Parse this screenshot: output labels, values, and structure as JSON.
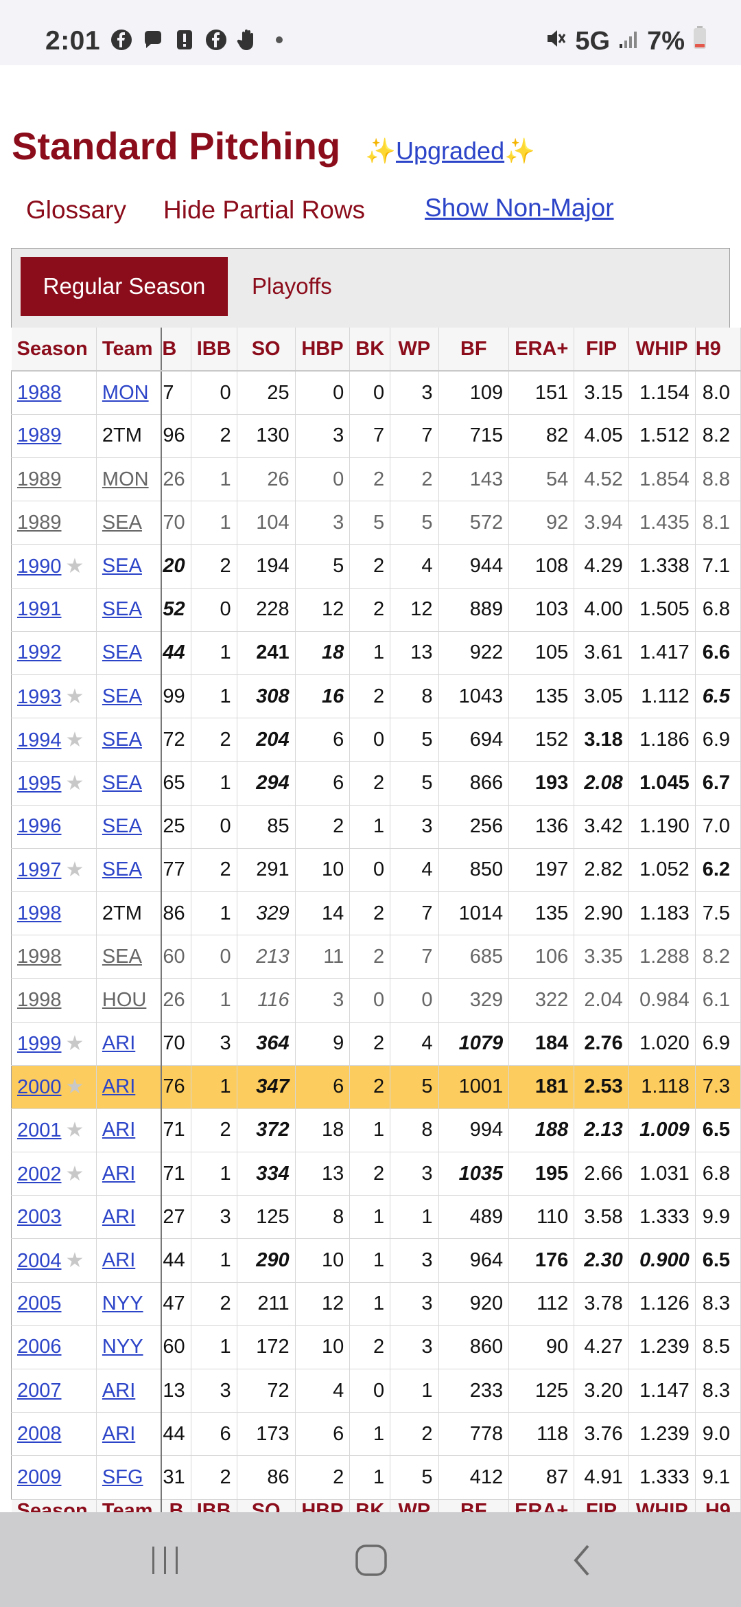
{
  "status": {
    "time": "2:01",
    "network": "5G",
    "battery": "7%"
  },
  "page": {
    "title": "Standard Pitching",
    "upgraded_label": "Upgraded",
    "sparkle": "✨"
  },
  "links": {
    "glossary": "Glossary",
    "hide_partial": "Hide Partial Rows",
    "show_non_major": "Show Non-Major"
  },
  "tabs": {
    "regular": "Regular Season",
    "playoffs": "Playoffs"
  },
  "table": {
    "headers": [
      "Season",
      "Team",
      "B",
      "IBB",
      "SO",
      "HBP",
      "BK",
      "WP",
      "BF",
      "ERA+",
      "FIP",
      "WHIP",
      "H9"
    ],
    "rows": [
      {
        "season": "1988",
        "star": false,
        "team": "MON",
        "team_link": true,
        "partial": false,
        "hl": false,
        "c": [
          "7",
          "0",
          "25",
          "0",
          "0",
          "3",
          "109",
          "151",
          "3.15",
          "1.154",
          "8.0"
        ],
        "f": [
          "",
          "",
          "",
          "",
          "",
          "",
          "",
          "",
          "",
          "",
          ""
        ]
      },
      {
        "season": "1989",
        "star": false,
        "team": "2TM",
        "team_link": false,
        "partial": false,
        "hl": false,
        "c": [
          "96",
          "2",
          "130",
          "3",
          "7",
          "7",
          "715",
          "82",
          "4.05",
          "1.512",
          "8.2"
        ],
        "f": [
          "",
          "",
          "",
          "",
          "",
          "",
          "",
          "",
          "",
          "",
          ""
        ]
      },
      {
        "season": "1989",
        "star": false,
        "team": "MON",
        "team_link": true,
        "partial": true,
        "hl": false,
        "c": [
          "26",
          "1",
          "26",
          "0",
          "2",
          "2",
          "143",
          "54",
          "4.52",
          "1.854",
          "8.8"
        ],
        "f": [
          "",
          "",
          "",
          "",
          "",
          "",
          "",
          "",
          "",
          "",
          ""
        ]
      },
      {
        "season": "1989",
        "star": false,
        "team": "SEA",
        "team_link": true,
        "partial": true,
        "hl": false,
        "c": [
          "70",
          "1",
          "104",
          "3",
          "5",
          "5",
          "572",
          "92",
          "3.94",
          "1.435",
          "8.1"
        ],
        "f": [
          "",
          "",
          "",
          "",
          "",
          "",
          "",
          "",
          "",
          "",
          ""
        ]
      },
      {
        "season": "1990",
        "star": true,
        "team": "SEA",
        "team_link": true,
        "partial": false,
        "hl": false,
        "c": [
          "20",
          "2",
          "194",
          "5",
          "2",
          "4",
          "944",
          "108",
          "4.29",
          "1.338",
          "7.1"
        ],
        "f": [
          "bi",
          "",
          "",
          "",
          "",
          "",
          "",
          "",
          "",
          "",
          ""
        ]
      },
      {
        "season": "1991",
        "star": false,
        "team": "SEA",
        "team_link": true,
        "partial": false,
        "hl": false,
        "c": [
          "52",
          "0",
          "228",
          "12",
          "2",
          "12",
          "889",
          "103",
          "4.00",
          "1.505",
          "6.8"
        ],
        "f": [
          "bi",
          "",
          "",
          "",
          "",
          "",
          "",
          "",
          "",
          "",
          ""
        ]
      },
      {
        "season": "1992",
        "star": false,
        "team": "SEA",
        "team_link": true,
        "partial": false,
        "hl": false,
        "c": [
          "44",
          "1",
          "241",
          "18",
          "1",
          "13",
          "922",
          "105",
          "3.61",
          "1.417",
          "6.6"
        ],
        "f": [
          "bi",
          "",
          "b",
          "bi",
          "",
          "",
          "",
          "",
          "",
          "",
          "b"
        ]
      },
      {
        "season": "1993",
        "star": true,
        "team": "SEA",
        "team_link": true,
        "partial": false,
        "hl": false,
        "c": [
          "99",
          "1",
          "308",
          "16",
          "2",
          "8",
          "1043",
          "135",
          "3.05",
          "1.112",
          "6.5"
        ],
        "f": [
          "",
          "",
          "bi",
          "bi",
          "",
          "",
          "",
          "",
          "",
          "",
          "bi"
        ]
      },
      {
        "season": "1994",
        "star": true,
        "team": "SEA",
        "team_link": true,
        "partial": false,
        "hl": false,
        "c": [
          "72",
          "2",
          "204",
          "6",
          "0",
          "5",
          "694",
          "152",
          "3.18",
          "1.186",
          "6.9"
        ],
        "f": [
          "",
          "",
          "bi",
          "",
          "",
          "",
          "",
          "",
          "b",
          "",
          ""
        ]
      },
      {
        "season": "1995",
        "star": true,
        "team": "SEA",
        "team_link": true,
        "partial": false,
        "hl": false,
        "c": [
          "65",
          "1",
          "294",
          "6",
          "2",
          "5",
          "866",
          "193",
          "2.08",
          "1.045",
          "6.7"
        ],
        "f": [
          "",
          "",
          "bi",
          "",
          "",
          "",
          "",
          "b",
          "bi",
          "b",
          "b"
        ]
      },
      {
        "season": "1996",
        "star": false,
        "team": "SEA",
        "team_link": true,
        "partial": false,
        "hl": false,
        "c": [
          "25",
          "0",
          "85",
          "2",
          "1",
          "3",
          "256",
          "136",
          "3.42",
          "1.190",
          "7.0"
        ],
        "f": [
          "",
          "",
          "",
          "",
          "",
          "",
          "",
          "",
          "",
          "",
          ""
        ]
      },
      {
        "season": "1997",
        "star": true,
        "team": "SEA",
        "team_link": true,
        "partial": false,
        "hl": false,
        "c": [
          "77",
          "2",
          "291",
          "10",
          "0",
          "4",
          "850",
          "197",
          "2.82",
          "1.052",
          "6.2"
        ],
        "f": [
          "",
          "",
          "",
          "",
          "",
          "",
          "",
          "",
          "",
          "",
          "b"
        ]
      },
      {
        "season": "1998",
        "star": false,
        "team": "2TM",
        "team_link": false,
        "partial": false,
        "hl": false,
        "c": [
          "86",
          "1",
          "329",
          "14",
          "2",
          "7",
          "1014",
          "135",
          "2.90",
          "1.183",
          "7.5"
        ],
        "f": [
          "",
          "",
          "i",
          "",
          "",
          "",
          "",
          "",
          "",
          "",
          ""
        ]
      },
      {
        "season": "1998",
        "star": false,
        "team": "SEA",
        "team_link": true,
        "partial": true,
        "hl": false,
        "c": [
          "60",
          "0",
          "213",
          "11",
          "2",
          "7",
          "685",
          "106",
          "3.35",
          "1.288",
          "8.2"
        ],
        "f": [
          "",
          "",
          "i",
          "",
          "",
          "",
          "",
          "",
          "",
          "",
          ""
        ]
      },
      {
        "season": "1998",
        "star": false,
        "team": "HOU",
        "team_link": true,
        "partial": true,
        "hl": false,
        "c": [
          "26",
          "1",
          "116",
          "3",
          "0",
          "0",
          "329",
          "322",
          "2.04",
          "0.984",
          "6.1"
        ],
        "f": [
          "",
          "",
          "i",
          "",
          "",
          "",
          "",
          "",
          "",
          "",
          ""
        ]
      },
      {
        "season": "1999",
        "star": true,
        "team": "ARI",
        "team_link": true,
        "partial": false,
        "hl": false,
        "c": [
          "70",
          "3",
          "364",
          "9",
          "2",
          "4",
          "1079",
          "184",
          "2.76",
          "1.020",
          "6.9"
        ],
        "f": [
          "",
          "",
          "bi",
          "",
          "",
          "",
          "bi",
          "b",
          "b",
          "",
          ""
        ]
      },
      {
        "season": "2000",
        "star": true,
        "team": "ARI",
        "team_link": true,
        "partial": false,
        "hl": true,
        "c": [
          "76",
          "1",
          "347",
          "6",
          "2",
          "5",
          "1001",
          "181",
          "2.53",
          "1.118",
          "7.3"
        ],
        "f": [
          "",
          "",
          "bi",
          "",
          "",
          "",
          "",
          "b",
          "b",
          "",
          ""
        ]
      },
      {
        "season": "2001",
        "star": true,
        "team": "ARI",
        "team_link": true,
        "partial": false,
        "hl": false,
        "c": [
          "71",
          "2",
          "372",
          "18",
          "1",
          "8",
          "994",
          "188",
          "2.13",
          "1.009",
          "6.5"
        ],
        "f": [
          "",
          "",
          "bi",
          "",
          "",
          "",
          "",
          "bi",
          "bi",
          "bi",
          "b"
        ]
      },
      {
        "season": "2002",
        "star": true,
        "team": "ARI",
        "team_link": true,
        "partial": false,
        "hl": false,
        "c": [
          "71",
          "1",
          "334",
          "13",
          "2",
          "3",
          "1035",
          "195",
          "2.66",
          "1.031",
          "6.8"
        ],
        "f": [
          "",
          "",
          "bi",
          "",
          "",
          "",
          "bi",
          "b",
          "",
          "",
          ""
        ]
      },
      {
        "season": "2003",
        "star": false,
        "team": "ARI",
        "team_link": true,
        "partial": false,
        "hl": false,
        "c": [
          "27",
          "3",
          "125",
          "8",
          "1",
          "1",
          "489",
          "110",
          "3.58",
          "1.333",
          "9.9"
        ],
        "f": [
          "",
          "",
          "",
          "",
          "",
          "",
          "",
          "",
          "",
          "",
          ""
        ]
      },
      {
        "season": "2004",
        "star": true,
        "team": "ARI",
        "team_link": true,
        "partial": false,
        "hl": false,
        "c": [
          "44",
          "1",
          "290",
          "10",
          "1",
          "3",
          "964",
          "176",
          "2.30",
          "0.900",
          "6.5"
        ],
        "f": [
          "",
          "",
          "bi",
          "",
          "",
          "",
          "",
          "b",
          "bi",
          "bi",
          "b"
        ]
      },
      {
        "season": "2005",
        "star": false,
        "team": "NYY",
        "team_link": true,
        "partial": false,
        "hl": false,
        "c": [
          "47",
          "2",
          "211",
          "12",
          "1",
          "3",
          "920",
          "112",
          "3.78",
          "1.126",
          "8.3"
        ],
        "f": [
          "",
          "",
          "",
          "",
          "",
          "",
          "",
          "",
          "",
          "",
          ""
        ]
      },
      {
        "season": "2006",
        "star": false,
        "team": "NYY",
        "team_link": true,
        "partial": false,
        "hl": false,
        "c": [
          "60",
          "1",
          "172",
          "10",
          "2",
          "3",
          "860",
          "90",
          "4.27",
          "1.239",
          "8.5"
        ],
        "f": [
          "",
          "",
          "",
          "",
          "",
          "",
          "",
          "",
          "",
          "",
          ""
        ]
      },
      {
        "season": "2007",
        "star": false,
        "team": "ARI",
        "team_link": true,
        "partial": false,
        "hl": false,
        "c": [
          "13",
          "3",
          "72",
          "4",
          "0",
          "1",
          "233",
          "125",
          "3.20",
          "1.147",
          "8.3"
        ],
        "f": [
          "",
          "",
          "",
          "",
          "",
          "",
          "",
          "",
          "",
          "",
          ""
        ]
      },
      {
        "season": "2008",
        "star": false,
        "team": "ARI",
        "team_link": true,
        "partial": false,
        "hl": false,
        "c": [
          "44",
          "6",
          "173",
          "6",
          "1",
          "2",
          "778",
          "118",
          "3.76",
          "1.239",
          "9.0"
        ],
        "f": [
          "",
          "",
          "",
          "",
          "",
          "",
          "",
          "",
          "",
          "",
          ""
        ]
      },
      {
        "season": "2009",
        "star": false,
        "team": "SFG",
        "team_link": true,
        "partial": false,
        "hl": false,
        "c": [
          "31",
          "2",
          "86",
          "2",
          "1",
          "5",
          "412",
          "87",
          "4.91",
          "1.333",
          "9.1"
        ],
        "f": [
          "",
          "",
          "",
          "",
          "",
          "",
          "",
          "",
          "",
          "",
          ""
        ]
      }
    ]
  }
}
